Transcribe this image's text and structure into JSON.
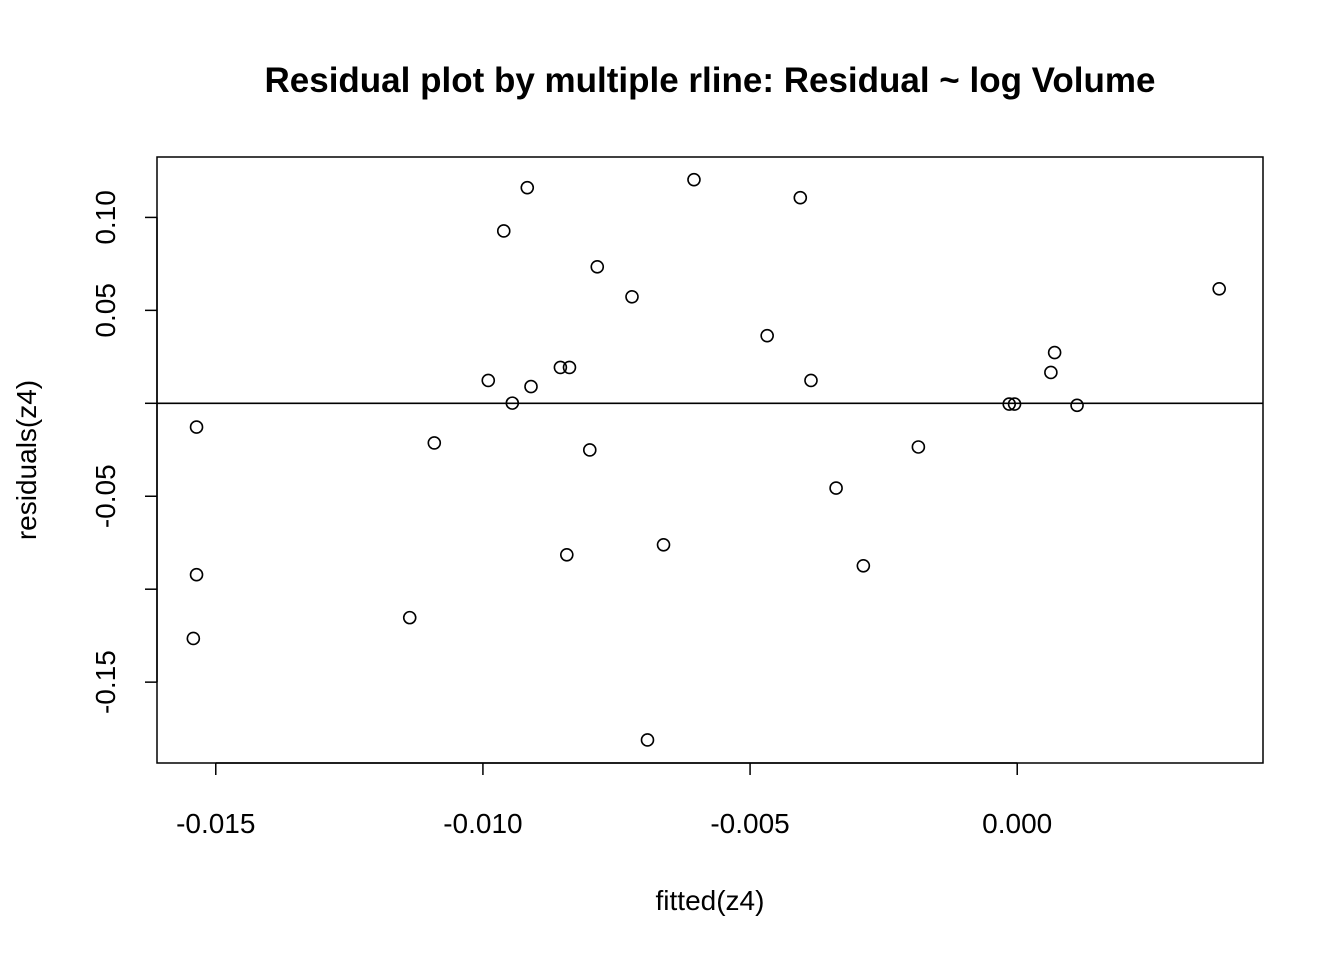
{
  "chart_data": {
    "type": "scatter",
    "title": "Residual plot by multiple rline: Residual ~ log Volume",
    "xlabel": "fitted(z4)",
    "ylabel": "residuals(z4)",
    "xlim": [
      -0.0161,
      0.0046
    ],
    "ylim": [
      -0.1935,
      0.1325
    ],
    "x_ticks": [
      -0.015,
      -0.01,
      -0.005,
      0.0
    ],
    "x_tick_labels": [
      "-0.015",
      "-0.010",
      "-0.005",
      "0.000"
    ],
    "y_ticks": [
      -0.15,
      -0.1,
      -0.05,
      0.0,
      0.05,
      0.1
    ],
    "y_tick_labels": [
      "-0.15",
      "",
      "-0.05",
      "",
      "0.05",
      "0.10"
    ],
    "reference_line_y": 0,
    "grid": false,
    "marker": "open-circle",
    "points": [
      {
        "x": -0.01536,
        "y": -0.0128
      },
      {
        "x": -0.01536,
        "y": -0.0922
      },
      {
        "x": -0.01542,
        "y": -0.1265
      },
      {
        "x": -0.01137,
        "y": -0.1153
      },
      {
        "x": -0.01091,
        "y": -0.0213
      },
      {
        "x": -0.0099,
        "y": 0.0123
      },
      {
        "x": -0.00961,
        "y": 0.0927
      },
      {
        "x": -0.00945,
        "y": 0.0001
      },
      {
        "x": -0.00917,
        "y": 0.116
      },
      {
        "x": -0.0091,
        "y": 0.009
      },
      {
        "x": -0.00855,
        "y": 0.0193
      },
      {
        "x": -0.00838,
        "y": 0.0193
      },
      {
        "x": -0.00843,
        "y": -0.0815
      },
      {
        "x": -0.008,
        "y": -0.0251
      },
      {
        "x": -0.00786,
        "y": 0.0734
      },
      {
        "x": -0.00721,
        "y": 0.0573
      },
      {
        "x": -0.00692,
        "y": -0.1811
      },
      {
        "x": -0.00662,
        "y": -0.0761
      },
      {
        "x": -0.00605,
        "y": 0.1203
      },
      {
        "x": -0.00468,
        "y": 0.0364
      },
      {
        "x": -0.00406,
        "y": 0.1106
      },
      {
        "x": -0.00386,
        "y": 0.0123
      },
      {
        "x": -0.00339,
        "y": -0.0456
      },
      {
        "x": -0.00288,
        "y": -0.0874
      },
      {
        "x": -0.00185,
        "y": -0.0235
      },
      {
        "x": -0.00015,
        "y": -0.0004
      },
      {
        "x": -5e-05,
        "y": -0.0004
      },
      {
        "x": 0.00063,
        "y": 0.0166
      },
      {
        "x": 0.0007,
        "y": 0.0273
      },
      {
        "x": 0.00112,
        "y": -0.0011
      },
      {
        "x": 0.00378,
        "y": 0.0616
      }
    ]
  }
}
